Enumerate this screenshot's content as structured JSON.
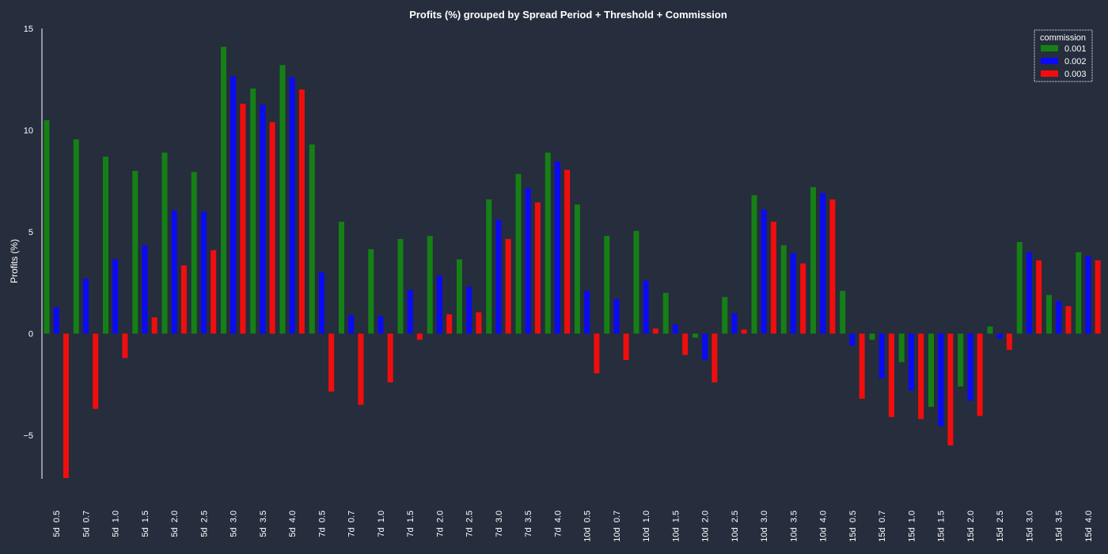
{
  "chart_data": {
    "type": "bar",
    "title": "Profits (%) grouped by Spread Period + Threshold + Commission",
    "xlabel": "",
    "ylabel": "Profits (%)",
    "ylim": [
      -7.1,
      15
    ],
    "yticks": [
      15,
      10,
      5,
      0,
      -5
    ],
    "ytick_labels": [
      "15",
      "10",
      "5",
      "0",
      "−5"
    ],
    "grid": false,
    "legend": {
      "title": "commission",
      "position": "top-right"
    },
    "categories": [
      "5d  0.5",
      "5d  0.7",
      "5d  1.0",
      "5d  1.5",
      "5d  2.0",
      "5d  2.5",
      "5d  3.0",
      "5d  3.5",
      "5d  4.0",
      "7d  0.5",
      "7d  0.7",
      "7d  1.0",
      "7d  1.5",
      "7d  2.0",
      "7d  2.5",
      "7d  3.0",
      "7d  3.5",
      "7d  4.0",
      "10d  0.5",
      "10d  0.7",
      "10d  1.0",
      "10d  1.5",
      "10d  2.0",
      "10d  2.5",
      "10d  3.0",
      "10d  3.5",
      "10d  4.0",
      "15d  0.5",
      "15d  0.7",
      "15d  1.0",
      "15d  1.5",
      "15d  2.0",
      "15d  2.5",
      "15d  3.0",
      "15d  3.5",
      "15d  4.0"
    ],
    "series": [
      {
        "name": "0.001",
        "color": "#158015",
        "values": [
          10.5,
          9.55,
          8.7,
          8.0,
          8.9,
          7.95,
          14.1,
          12.05,
          13.2,
          9.3,
          5.5,
          4.15,
          4.65,
          4.8,
          3.65,
          6.6,
          7.85,
          8.9,
          6.35,
          4.8,
          5.05,
          2.0,
          -0.2,
          1.8,
          6.8,
          4.35,
          7.2,
          2.1,
          -0.3,
          -1.4,
          -3.6,
          -2.6,
          0.35,
          4.5,
          1.9,
          4.0
        ]
      },
      {
        "name": "0.002",
        "color": "#0a0af5",
        "values": [
          1.3,
          2.7,
          3.65,
          4.35,
          6.05,
          6.0,
          12.65,
          11.25,
          12.6,
          3.0,
          0.9,
          0.85,
          2.15,
          2.85,
          2.3,
          5.6,
          7.15,
          8.45,
          2.1,
          1.7,
          2.6,
          0.45,
          -1.3,
          1.0,
          6.1,
          3.95,
          6.9,
          -0.6,
          -2.2,
          -2.8,
          -4.55,
          -3.3,
          -0.25,
          4.0,
          1.6,
          3.8
        ]
      },
      {
        "name": "0.003",
        "color": "#f20d0d",
        "values": [
          -7.1,
          -3.7,
          -1.2,
          0.8,
          3.35,
          4.1,
          11.3,
          10.4,
          12.0,
          -2.85,
          -3.5,
          -2.4,
          -0.3,
          0.95,
          1.05,
          4.65,
          6.45,
          8.05,
          -1.95,
          -1.3,
          0.25,
          -1.05,
          -2.4,
          0.2,
          5.5,
          3.45,
          6.6,
          -3.2,
          -4.1,
          -4.2,
          -5.5,
          -4.05,
          -0.8,
          3.6,
          1.35,
          3.6
        ]
      }
    ]
  }
}
